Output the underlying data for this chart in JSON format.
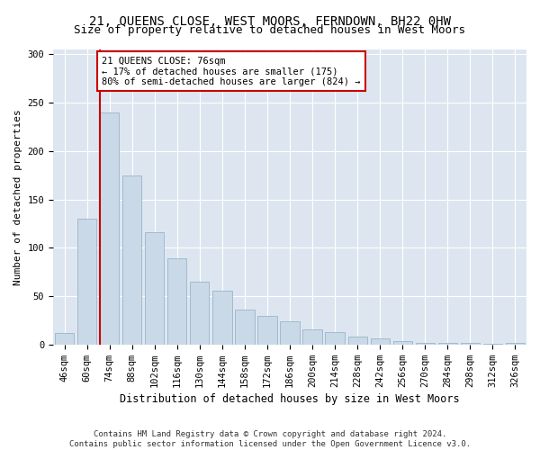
{
  "title": "21, QUEENS CLOSE, WEST MOORS, FERNDOWN, BH22 0HW",
  "subtitle": "Size of property relative to detached houses in West Moors",
  "xlabel": "Distribution of detached houses by size in West Moors",
  "ylabel": "Number of detached properties",
  "categories": [
    "46sqm",
    "60sqm",
    "74sqm",
    "88sqm",
    "102sqm",
    "116sqm",
    "130sqm",
    "144sqm",
    "158sqm",
    "172sqm",
    "186sqm",
    "200sqm",
    "214sqm",
    "228sqm",
    "242sqm",
    "256sqm",
    "270sqm",
    "284sqm",
    "298sqm",
    "312sqm",
    "326sqm"
  ],
  "bar_heights": [
    12,
    130,
    240,
    175,
    116,
    89,
    65,
    56,
    36,
    30,
    24,
    16,
    13,
    8,
    6,
    4,
    2,
    2,
    2,
    1,
    2
  ],
  "property_line_index": 2,
  "annotation_text": "21 QUEENS CLOSE: 76sqm\n← 17% of detached houses are smaller (175)\n80% of semi-detached houses are larger (824) →",
  "bar_color": "#c9d9e8",
  "bar_edge_color": "#9ab4c8",
  "line_color": "#cc0000",
  "annotation_box_color": "#ffffff",
  "annotation_box_edge_color": "#cc0000",
  "plot_bg_color": "#dde6f0",
  "fig_bg_color": "#ffffff",
  "ylim": [
    0,
    305
  ],
  "yticks": [
    0,
    50,
    100,
    150,
    200,
    250,
    300
  ],
  "grid_color": "#ffffff",
  "title_fontsize": 10,
  "subtitle_fontsize": 9,
  "xlabel_fontsize": 8.5,
  "ylabel_fontsize": 8,
  "tick_fontsize": 7.5,
  "annotation_fontsize": 7.5,
  "footer_fontsize": 6.5,
  "footer_line1": "Contains HM Land Registry data © Crown copyright and database right 2024.",
  "footer_line2": "Contains public sector information licensed under the Open Government Licence v3.0."
}
